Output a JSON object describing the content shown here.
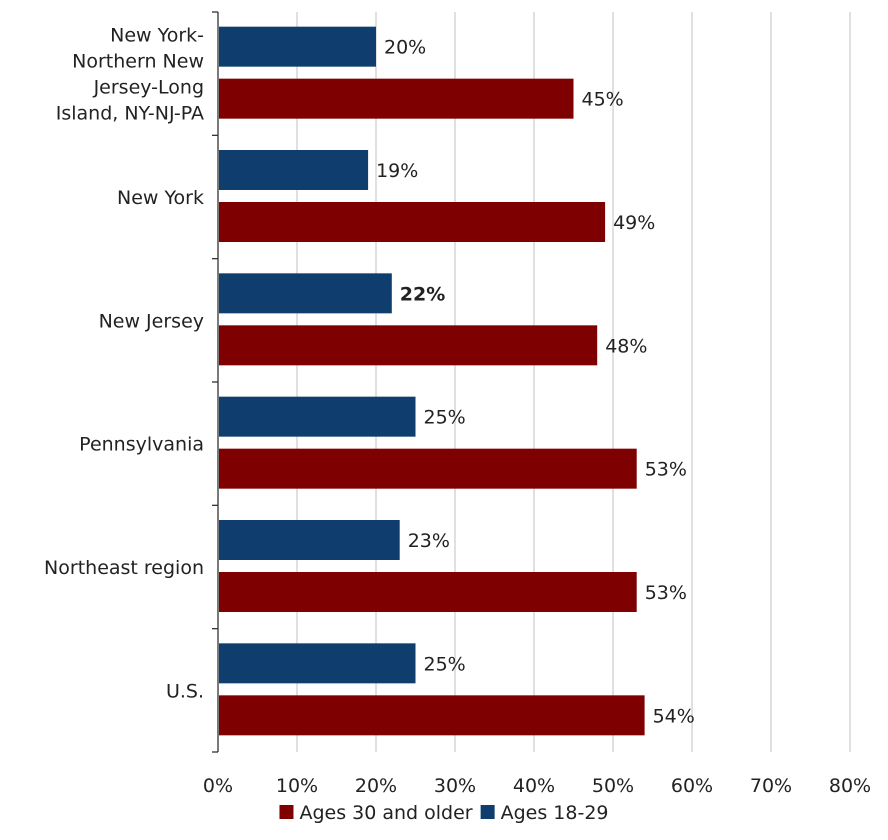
{
  "chart_data": {
    "type": "bar",
    "orientation": "horizontal",
    "categories": [
      "New York-Northern New Jersey-Long Island, NY-NJ-PA",
      "New York",
      "New Jersey",
      "Pennsylvania",
      "Northeast region",
      "U.S."
    ],
    "category_display_lines": [
      [
        "New York-",
        "Northern New",
        "Jersey-Long",
        "Island, NY-NJ-PA"
      ],
      [
        "New York"
      ],
      [
        "New Jersey"
      ],
      [
        "Pennsylvania"
      ],
      [
        "Northeast region"
      ],
      [
        "U.S."
      ]
    ],
    "series": [
      {
        "name": "Ages 18-29",
        "color": "#0e3d6e",
        "values": [
          20,
          19,
          22,
          25,
          23,
          25
        ],
        "labels": [
          "20%",
          "19%",
          "22%",
          "25%",
          "23%",
          "25%"
        ],
        "bold_labels": [
          false,
          false,
          true,
          false,
          false,
          false
        ]
      },
      {
        "name": "Ages 30 and older",
        "color": "#7f0000",
        "values": [
          45,
          49,
          48,
          53,
          53,
          54
        ],
        "labels": [
          "45%",
          "49%",
          "48%",
          "53%",
          "53%",
          "54%"
        ],
        "bold_labels": [
          false,
          false,
          false,
          false,
          false,
          false
        ]
      }
    ],
    "xlim": [
      0,
      80
    ],
    "x_ticks": [
      0,
      10,
      20,
      30,
      40,
      50,
      60,
      70,
      80
    ],
    "x_tick_labels": [
      "0%",
      "10%",
      "20%",
      "30%",
      "40%",
      "50%",
      "60%",
      "70%",
      "80%"
    ],
    "grid": "vertical",
    "legend_position": "bottom",
    "legend_order": [
      "Ages 30 and older",
      "Ages 18-29"
    ],
    "title": "",
    "xlabel": "",
    "ylabel": ""
  }
}
